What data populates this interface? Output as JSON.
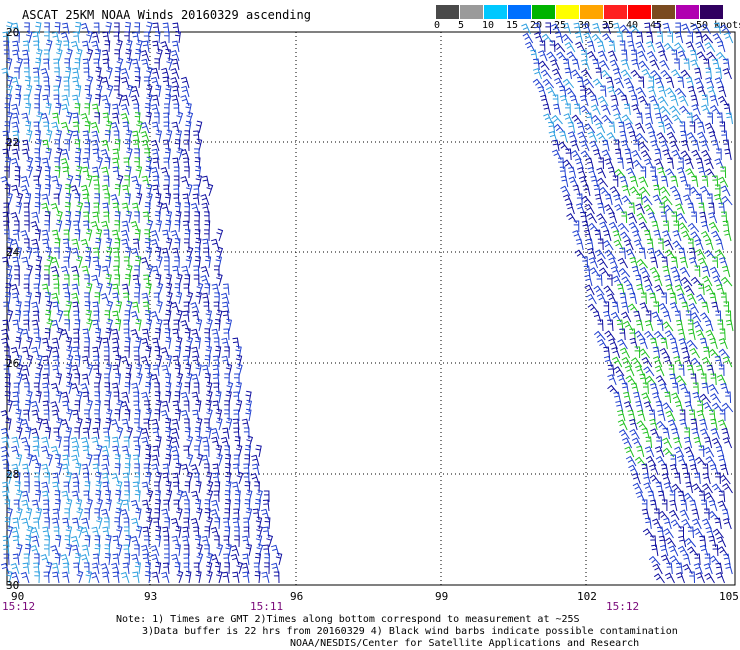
{
  "title": "ASCAT 25KM NOAA Winds 20160329 ascending",
  "legend": {
    "labels": [
      "0",
      "5",
      "10",
      "15",
      "20",
      "25",
      "30",
      "35",
      "40",
      "45",
      ">50 knots"
    ],
    "colors": [
      "#4a4a4a",
      "#9a9a9a",
      "#00c8ff",
      "#0070ff",
      "#00b400",
      "#ffff00",
      "#ffa500",
      "#ff2020",
      "#ff0000",
      "#7a4a20",
      "#b000b0",
      "#300060"
    ]
  },
  "map": {
    "lat_labels": [
      "20",
      "22",
      "24",
      "26",
      "28",
      "30"
    ],
    "lon_labels": [
      "90",
      "93",
      "96",
      "99",
      "102",
      "105"
    ],
    "time_labels": [
      "15:12",
      "15:11",
      "15:12"
    ],
    "swath_colors": {
      "navy": "#1010a0",
      "blue": "#2040d0",
      "lightblue": "#30a0e0",
      "green": "#20c020"
    }
  },
  "notes": {
    "line1": "Note: 1) Times are GMT 2)Times along bottom correspond to measurement at ~25S",
    "line2": "3)Data buffer is 22 hrs from 20160329 4) Black wind barbs indicate possible contamination",
    "line3": "NOAA/NESDIS/Center for Satellite Applications and Research"
  }
}
